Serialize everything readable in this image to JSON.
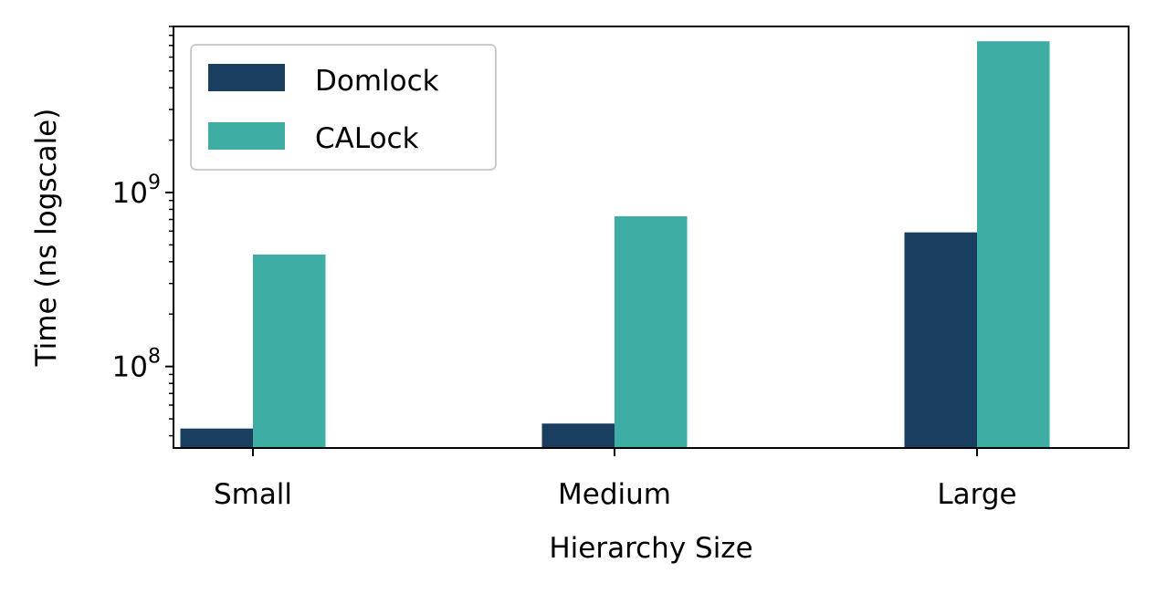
{
  "chart_data": {
    "type": "bar",
    "title": "",
    "xlabel": "Hierarchy Size",
    "ylabel": "Time (ns logscale)",
    "categories": [
      "Small",
      "Medium",
      "Large"
    ],
    "series": [
      {
        "name": "Domlock",
        "values": [
          44000000,
          47000000,
          590000000
        ],
        "color": "#1a3e5f"
      },
      {
        "name": "CALock",
        "values": [
          440000000,
          730000000,
          7400000000
        ],
        "color": "#3eaea5"
      }
    ],
    "y_scale": "log",
    "ylim": [
      34000000,
      9000000000
    ],
    "yticks": [
      {
        "value": 100000000,
        "base": "10",
        "exp": "8"
      },
      {
        "value": 1000000000,
        "base": "10",
        "exp": "9"
      }
    ],
    "grid": false,
    "legend_position": "top-left"
  }
}
